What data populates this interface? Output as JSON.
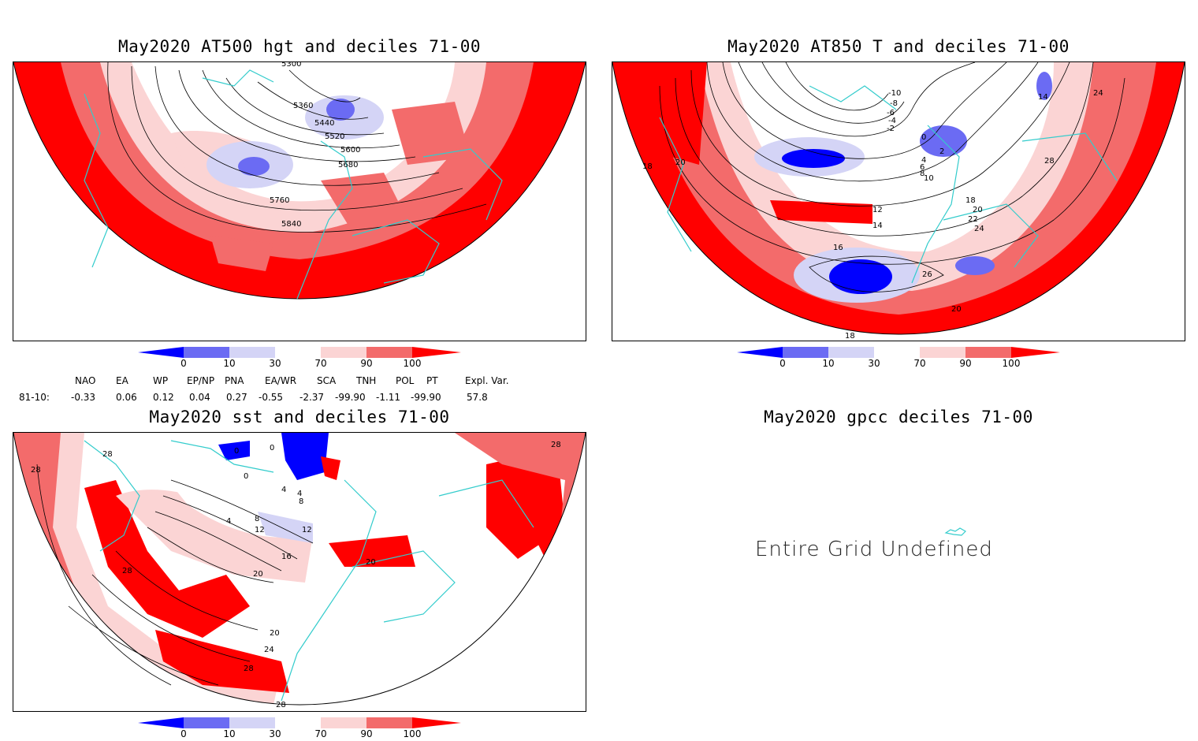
{
  "panels": {
    "p1": {
      "title": "May2020 AT500 hgt and deciles 71-00",
      "contours": [
        "5360",
        "5440",
        "5520",
        "5600",
        "5680",
        "5760",
        "5840",
        "5300"
      ]
    },
    "p2": {
      "title": "May2020 AT850 T and deciles 71-00",
      "contours": [
        "-10",
        "-8",
        "-6",
        "-4",
        "-2",
        "0",
        "2",
        "4",
        "6",
        "8",
        "10",
        "12",
        "14",
        "16",
        "18",
        "20",
        "22",
        "24",
        "26",
        "28",
        "14",
        "18",
        "20",
        "20",
        "24",
        "18"
      ]
    },
    "p3": {
      "title": "May2020 sst and deciles 71-00",
      "contours": [
        "28",
        "28",
        "0",
        "0",
        "0",
        "4",
        "4",
        "8",
        "4",
        "8",
        "12",
        "12",
        "16",
        "20",
        "20",
        "20",
        "24",
        "28",
        "28",
        "28",
        "28"
      ]
    },
    "p4": {
      "title": "May2020 gpcc deciles 71-00",
      "message": "Entire Grid Undefined"
    }
  },
  "colorbar": {
    "labels": [
      "0",
      "10",
      "30",
      "70",
      "90",
      "100"
    ],
    "colors": [
      "#0000ff",
      "#6b6bf3",
      "#d4d4f6",
      "#ffffff",
      "#fbd4d4",
      "#f36b6b",
      "#ff0000"
    ]
  },
  "indices": {
    "names": [
      "NAO",
      "EA",
      "WP",
      "EP/NP",
      "PNA",
      "EA/WR",
      "SCA",
      "TNH",
      "POL",
      "PT",
      "Expl. Var."
    ],
    "row_label": "81-10:",
    "values": [
      "-0.33",
      "0.06",
      "0.12",
      "0.04",
      "0.27",
      "-0.55",
      "-2.37",
      "-99.90",
      "-1.11",
      "-99.90",
      "57.8"
    ]
  },
  "colors": {
    "coast": "#33cccc",
    "contour": "#000000",
    "strong_pos": "#ff0000",
    "pos": "#f36b6b",
    "weak_pos": "#fbd4d4",
    "weak_neg": "#d4d4f6",
    "neg": "#6b6bf3",
    "strong_neg": "#0000ff"
  }
}
